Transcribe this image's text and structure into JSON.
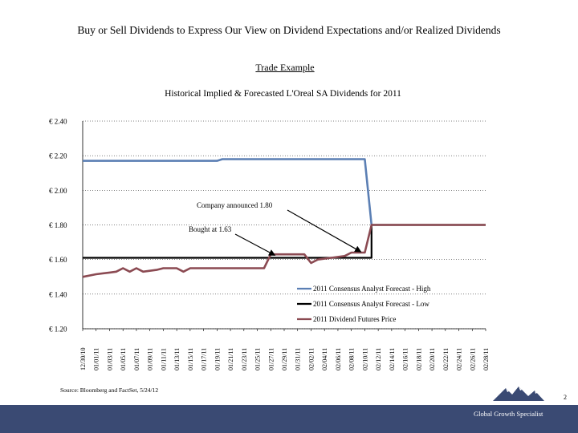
{
  "slide": {
    "title": "Buy or Sell Dividends to Express Our View on Dividend Expectations and/or Realized Dividends",
    "subtitle": "Trade Example",
    "source": "Source: Bloomberg and FactSet, 5/24/12",
    "page_number": "2",
    "footer_text": "Global Growth Specialist"
  },
  "colors": {
    "high": "#5b7fb4",
    "low": "#000000",
    "futures": "#8b4a52",
    "footer_bg": "#3a4a73",
    "gridline": "#000000"
  },
  "icons": [
    "mountains-logo-icon"
  ],
  "chart_data": {
    "type": "line",
    "title": "Historical Implied & Forecasted L'Oreal SA Dividends for 2011",
    "ylim": [
      1.2,
      2.4
    ],
    "yticks": [
      2.4,
      2.2,
      2.0,
      1.8,
      1.6,
      1.4,
      1.2
    ],
    "ytick_labels": [
      "€ 2.40",
      "€ 2.20",
      "€ 2.00",
      "€ 1.80",
      "€ 1.60",
      "€ 1.40",
      "€ 1.20"
    ],
    "categories": [
      "12/30/10",
      "01/01/11",
      "01/03/11",
      "01/05/11",
      "01/07/11",
      "01/09/11",
      "01/11/11",
      "01/13/11",
      "01/15/11",
      "01/17/11",
      "01/19/11",
      "01/21/11",
      "01/23/11",
      "01/25/11",
      "01/27/11",
      "01/29/11",
      "01/31/11",
      "02/02/11",
      "02/04/11",
      "02/06/11",
      "02/08/11",
      "02/10/11",
      "02/12/11",
      "02/14/11",
      "02/16/11",
      "02/18/11",
      "02/20/11",
      "02/22/11",
      "02/24/11",
      "02/26/11",
      "02/28/11"
    ],
    "series": [
      {
        "name": "2011 Consensus Analyst Forecast - High",
        "color_key": "high",
        "points": [
          [
            0,
            2.17
          ],
          [
            10,
            2.17
          ],
          [
            10.4,
            2.18
          ],
          [
            21,
            2.18
          ],
          [
            21.5,
            1.8
          ]
        ]
      },
      {
        "name": "2011 Consensus Analyst Forecast - Low",
        "color_key": "low",
        "points": [
          [
            0,
            1.61
          ],
          [
            21.5,
            1.61
          ],
          [
            21.5,
            1.8
          ],
          [
            30,
            1.8
          ]
        ]
      },
      {
        "name": "2011 Dividend Futures Price",
        "color_key": "futures",
        "points": [
          [
            0,
            1.5
          ],
          [
            1,
            1.515
          ],
          [
            2,
            1.525
          ],
          [
            2.5,
            1.53
          ],
          [
            3,
            1.55
          ],
          [
            3.5,
            1.53
          ],
          [
            4,
            1.55
          ],
          [
            4.5,
            1.53
          ],
          [
            5.5,
            1.54
          ],
          [
            6,
            1.55
          ],
          [
            7,
            1.55
          ],
          [
            7.5,
            1.53
          ],
          [
            8,
            1.55
          ],
          [
            9,
            1.55
          ],
          [
            13.5,
            1.55
          ],
          [
            14,
            1.63
          ],
          [
            16.5,
            1.63
          ],
          [
            17,
            1.58
          ],
          [
            17.5,
            1.6
          ],
          [
            18.5,
            1.61
          ],
          [
            19.5,
            1.62
          ],
          [
            20,
            1.64
          ],
          [
            20.5,
            1.64
          ],
          [
            21,
            1.64
          ],
          [
            21.5,
            1.8
          ],
          [
            30,
            1.8
          ]
        ]
      }
    ],
    "legend_position": "lower-right",
    "grid": true,
    "annotations": [
      {
        "text": "Company announced 1.80",
        "target": [
          20.7,
          1.645
        ]
      },
      {
        "text": "Bought at 1.63",
        "target": [
          14.3,
          1.625
        ]
      }
    ]
  }
}
